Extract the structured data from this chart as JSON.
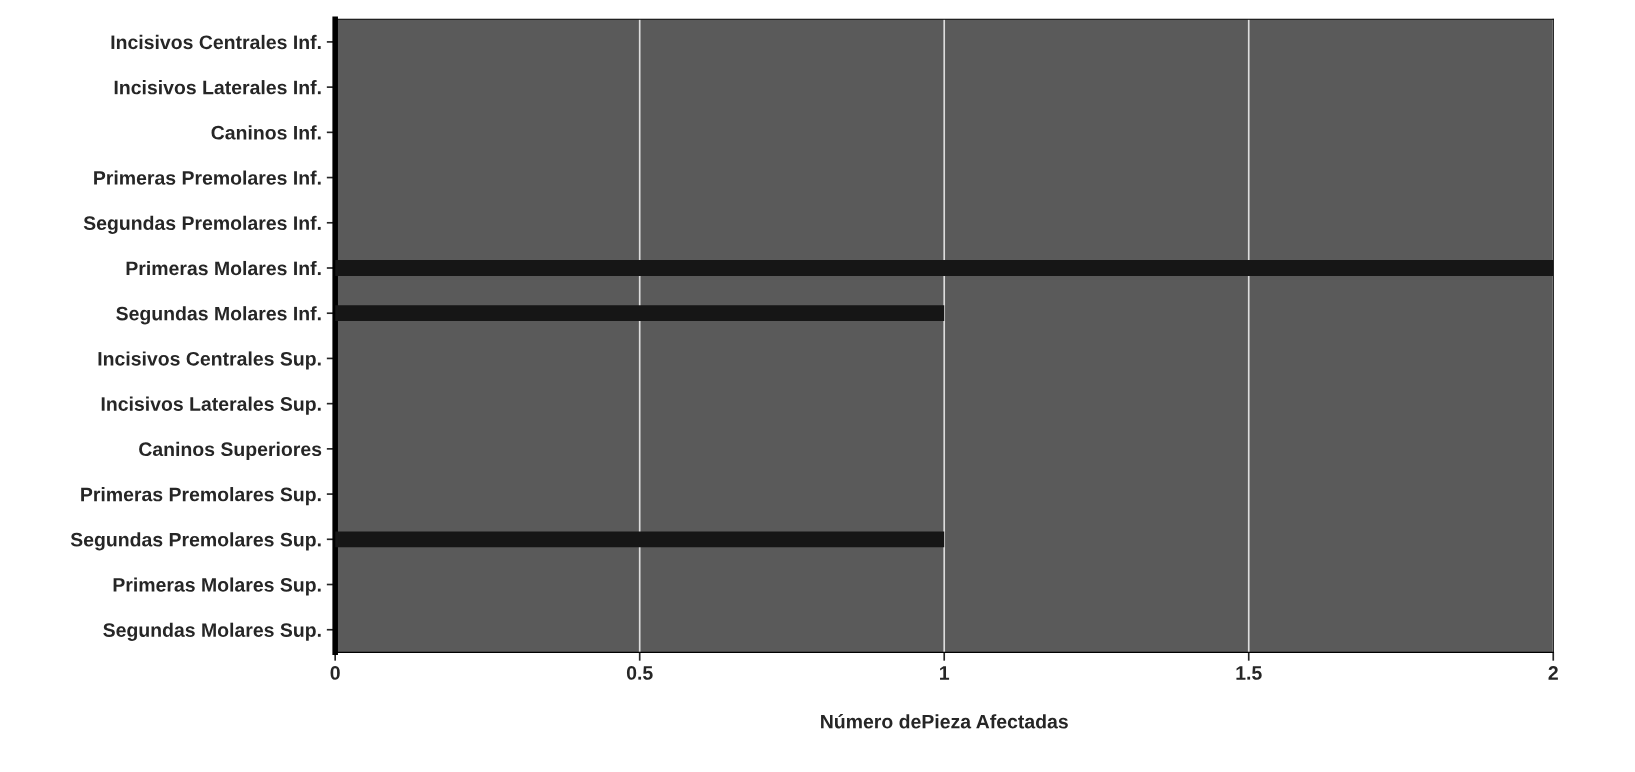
{
  "chart_data": {
    "type": "bar",
    "orientation": "horizontal",
    "xlabel": "Número dePieza Afectadas",
    "categories": [
      "Incisivos Centrales Inf.",
      "Incisivos Laterales Inf.",
      "Caninos Inf.",
      "Primeras Premolares Inf.",
      "Segundas Premolares Inf.",
      "Primeras Molares Inf.",
      "Segundas Molares Inf.",
      "Incisivos Centrales Sup.",
      "Incisivos Laterales Sup.",
      "Caninos Superiores",
      "Primeras Premolares Sup.",
      "Segundas Premolares Sup.",
      "Primeras Molares Sup.",
      "Segundas Molares Sup."
    ],
    "values": [
      0,
      0,
      0,
      0,
      0,
      2,
      1,
      0,
      0,
      0,
      0,
      1,
      0,
      0
    ],
    "color": "#161616",
    "xlim": [
      0,
      2
    ],
    "xticks": [
      0,
      0.5,
      1,
      1.5,
      2
    ],
    "grid": "x",
    "legend": false
  }
}
